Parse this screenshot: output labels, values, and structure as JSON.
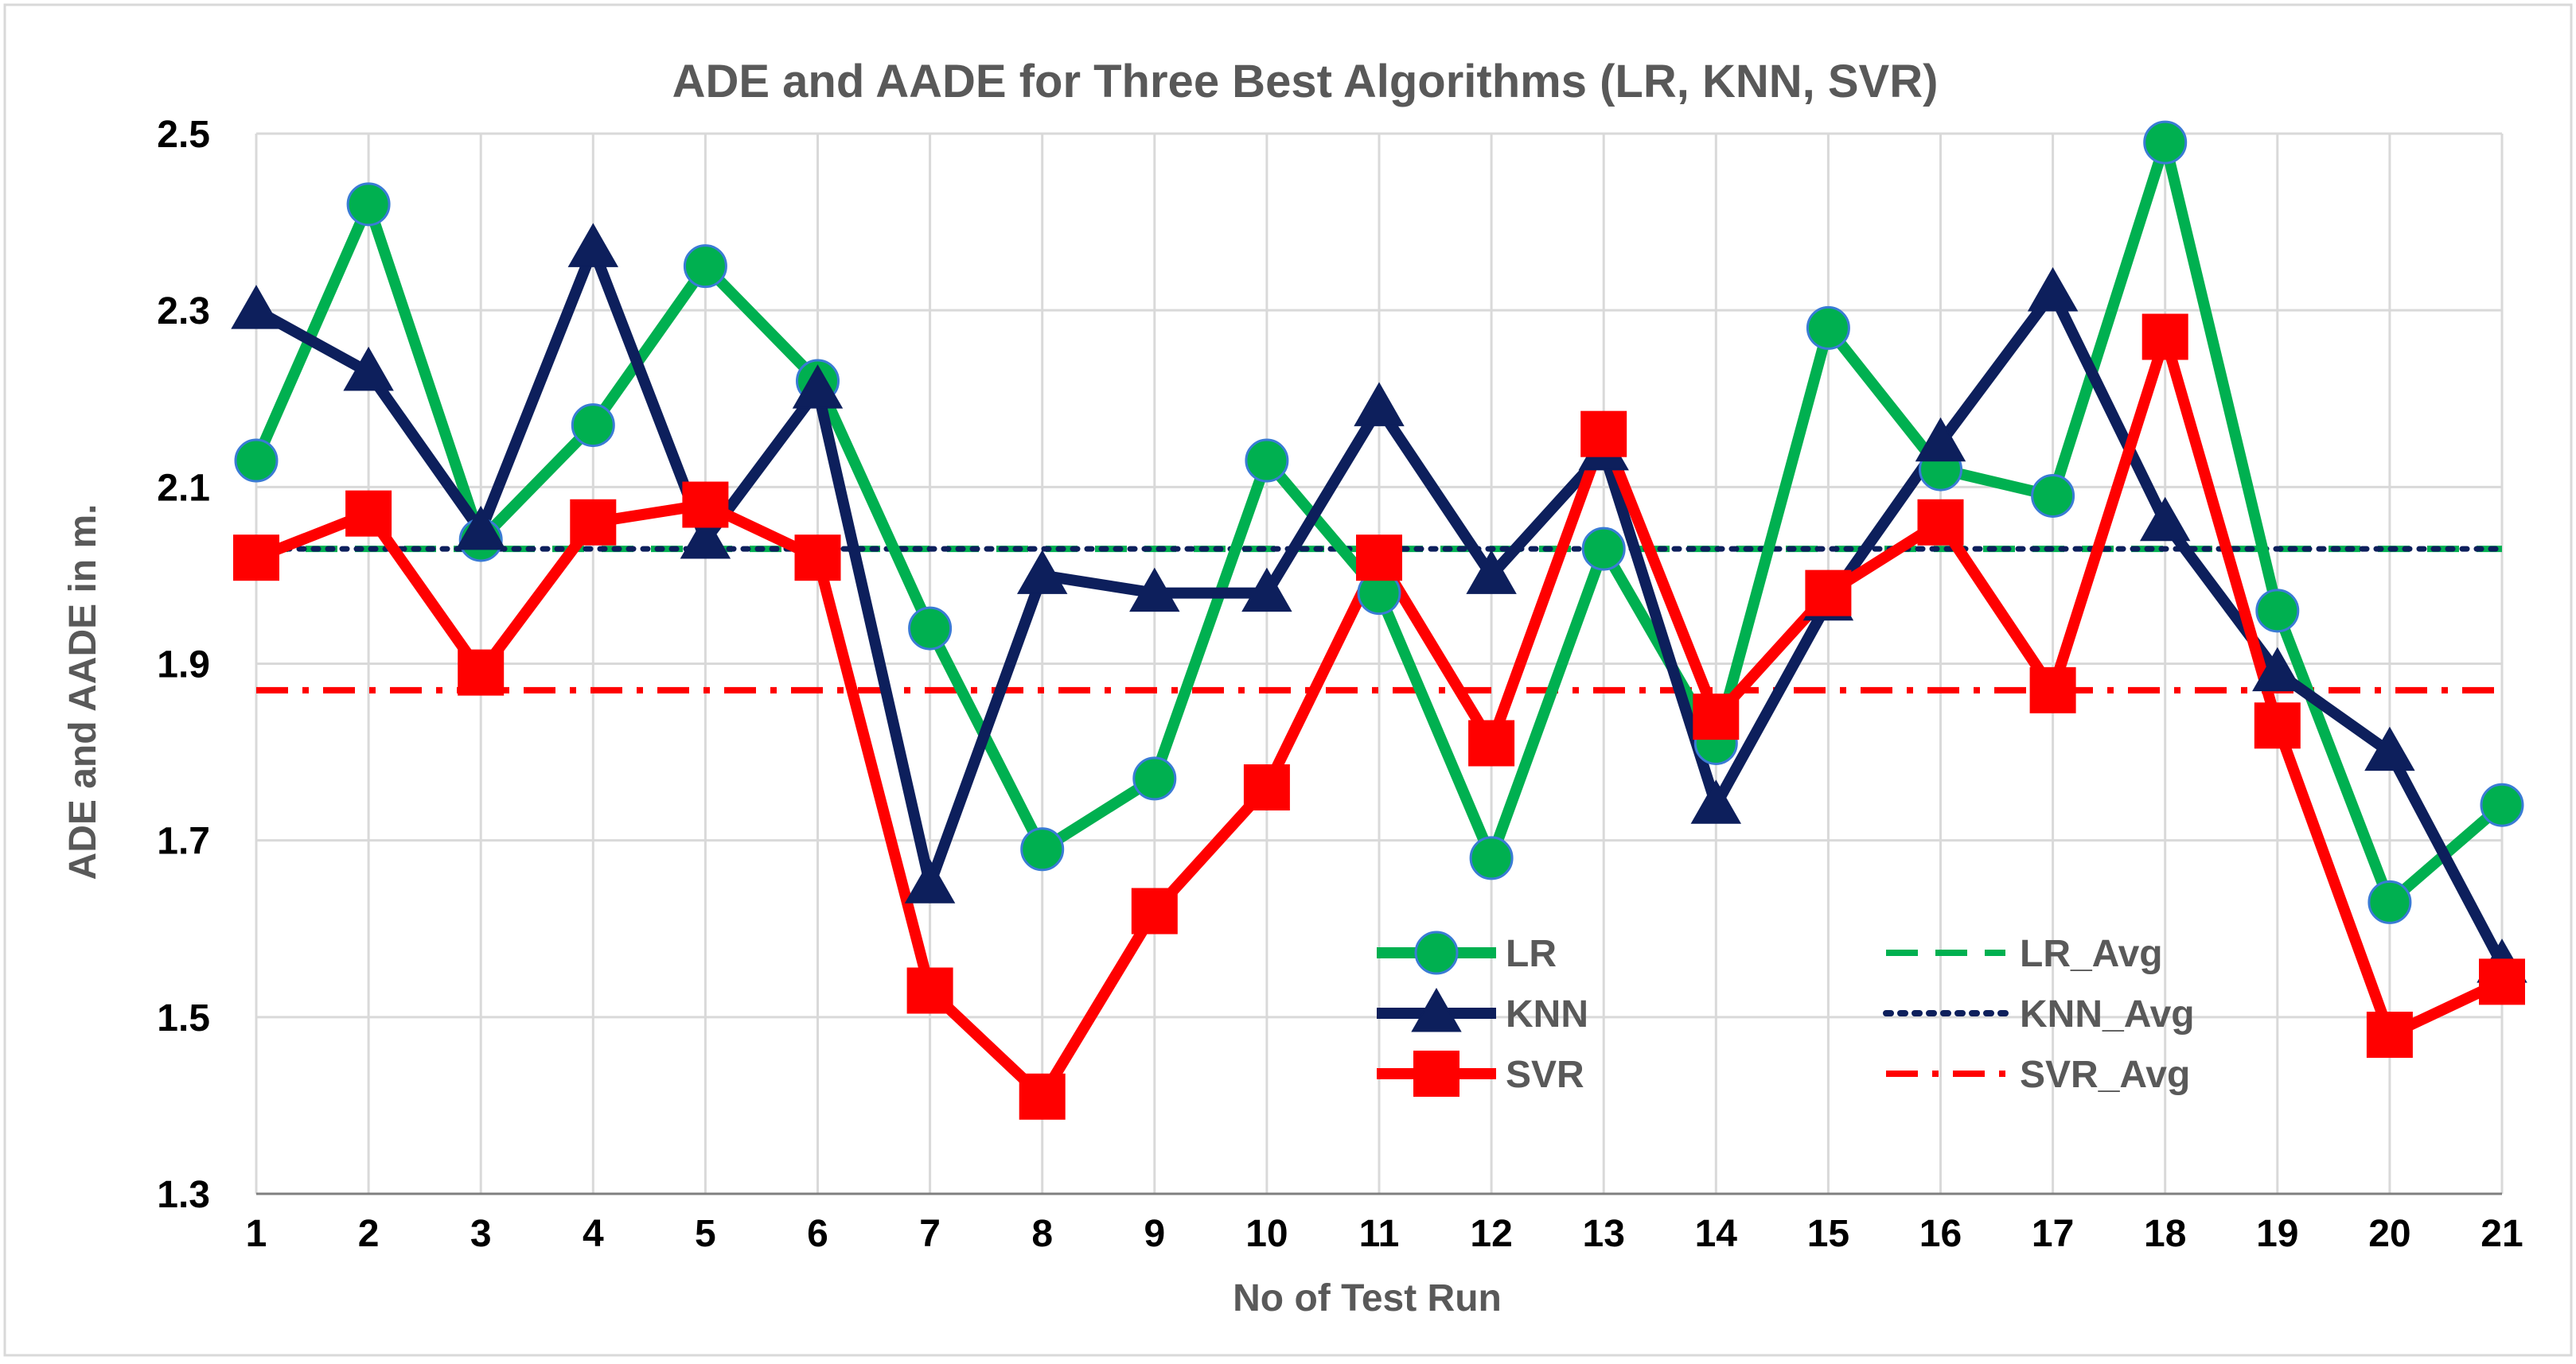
{
  "chart_data": {
    "type": "line",
    "title": "ADE  and AADE for Three Best Algorithms (LR, KNN, SVR)",
    "xlabel": "No of Test Run",
    "ylabel": "ADE and AADE in m.",
    "categories": [
      "1",
      "2",
      "3",
      "4",
      "5",
      "6",
      "7",
      "8",
      "9",
      "10",
      "11",
      "12",
      "13",
      "14",
      "15",
      "16",
      "17",
      "18",
      "19",
      "20",
      "21"
    ],
    "ylim": [
      1.3,
      2.5
    ],
    "yticks": [
      "1.3",
      "1.5",
      "1.7",
      "1.9",
      "2.1",
      "2.3",
      "2.5"
    ],
    "ytick_values": [
      1.3,
      1.5,
      1.7,
      1.9,
      2.1,
      2.3,
      2.5
    ],
    "grid": true,
    "legend_position": "bottom-center",
    "series": [
      {
        "name": "LR",
        "color": "#00b050",
        "marker": "circle",
        "style": "solid",
        "values": [
          2.13,
          2.42,
          2.04,
          2.17,
          2.35,
          2.22,
          1.94,
          1.69,
          1.77,
          2.13,
          1.98,
          1.68,
          2.03,
          1.81,
          2.28,
          2.12,
          2.09,
          2.49,
          1.96,
          1.63,
          1.74
        ]
      },
      {
        "name": "KNN",
        "color": "#0d1f5c",
        "marker": "triangle",
        "style": "solid",
        "values": [
          2.3,
          2.23,
          2.05,
          2.37,
          2.04,
          2.21,
          1.65,
          2.0,
          1.98,
          1.98,
          2.19,
          2.0,
          2.14,
          1.74,
          1.97,
          2.15,
          2.32,
          2.06,
          1.89,
          1.8,
          1.56
        ]
      },
      {
        "name": "SVR",
        "color": "#ff0000",
        "marker": "square",
        "style": "solid",
        "values": [
          2.02,
          2.07,
          1.89,
          2.06,
          2.08,
          2.02,
          1.53,
          1.41,
          1.62,
          1.76,
          2.02,
          1.81,
          2.16,
          1.84,
          1.98,
          2.06,
          1.87,
          2.27,
          1.83,
          1.48,
          1.54
        ]
      }
    ],
    "averages": [
      {
        "name": "LR_Avg",
        "color": "#00b050",
        "style": "dash",
        "value": 2.03
      },
      {
        "name": "KNN_Avg",
        "color": "#0d1f5c",
        "style": "dot",
        "value": 2.03
      },
      {
        "name": "SVR_Avg",
        "color": "#ff0000",
        "style": "dashdot",
        "value": 1.87
      }
    ]
  }
}
